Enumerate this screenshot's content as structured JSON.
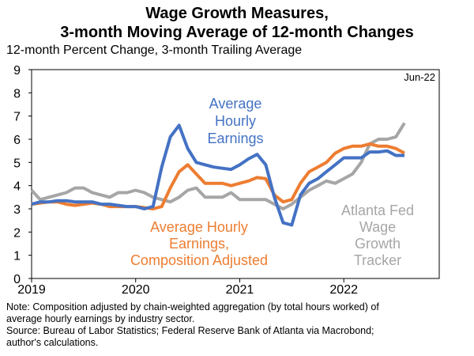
{
  "title_line1": "Wage Growth Measures,",
  "title_line2": "3-month Moving Average of 12-month Changes",
  "notes": [
    "Note: Composition adjusted by chain-weighted aggregation (by total hours worked) of",
    "average hourly earnings by industry sector.",
    "Source: Bureau of Labor Statistics; Federal Reserve Bank of Atlanta via Macrobond;",
    "author's calculations."
  ],
  "chart_data": {
    "type": "line",
    "ylabel": "12-month Percent Change, 3-month Trailing Average",
    "ylim": [
      0,
      9
    ],
    "yticks": [
      0,
      1,
      2,
      3,
      4,
      5,
      6,
      7,
      8,
      9
    ],
    "xlim": [
      2019.0,
      2022.917
    ],
    "xticks": [
      {
        "value": 2019,
        "label": "2019"
      },
      {
        "value": 2020,
        "label": "2020"
      },
      {
        "value": 2021,
        "label": "2021"
      },
      {
        "value": 2022,
        "label": "2022"
      }
    ],
    "corner_label": "Jun-22",
    "series": [
      {
        "name": "Atlanta Fed Wage Growth Tracker",
        "label_lines": [
          "Atlanta Fed",
          "Wage",
          "Growth",
          "Tracker"
        ],
        "color": "#a6a6a6",
        "points": [
          [
            2019.0,
            3.8
          ],
          [
            2019.083,
            3.4
          ],
          [
            2019.167,
            3.5
          ],
          [
            2019.25,
            3.6
          ],
          [
            2019.333,
            3.7
          ],
          [
            2019.417,
            3.9
          ],
          [
            2019.5,
            3.9
          ],
          [
            2019.583,
            3.7
          ],
          [
            2019.667,
            3.6
          ],
          [
            2019.75,
            3.5
          ],
          [
            2019.833,
            3.7
          ],
          [
            2019.917,
            3.7
          ],
          [
            2020.0,
            3.8
          ],
          [
            2020.083,
            3.7
          ],
          [
            2020.167,
            3.5
          ],
          [
            2020.25,
            3.4
          ],
          [
            2020.333,
            3.3
          ],
          [
            2020.417,
            3.5
          ],
          [
            2020.5,
            3.8
          ],
          [
            2020.583,
            3.9
          ],
          [
            2020.667,
            3.5
          ],
          [
            2020.75,
            3.5
          ],
          [
            2020.833,
            3.5
          ],
          [
            2020.917,
            3.7
          ],
          [
            2021.0,
            3.4
          ],
          [
            2021.083,
            3.4
          ],
          [
            2021.167,
            3.4
          ],
          [
            2021.25,
            3.4
          ],
          [
            2021.333,
            3.2
          ],
          [
            2021.417,
            3.0
          ],
          [
            2021.5,
            3.2
          ],
          [
            2021.583,
            3.5
          ],
          [
            2021.667,
            3.8
          ],
          [
            2021.75,
            4.0
          ],
          [
            2021.833,
            4.2
          ],
          [
            2021.917,
            4.1
          ],
          [
            2022.0,
            4.3
          ],
          [
            2022.083,
            4.5
          ],
          [
            2022.167,
            5.0
          ],
          [
            2022.25,
            5.8
          ],
          [
            2022.333,
            6.0
          ],
          [
            2022.417,
            6.0
          ],
          [
            2022.5,
            6.1
          ],
          [
            2022.583,
            6.7
          ]
        ]
      },
      {
        "name": "Average Hourly Earnings, Composition Adjusted",
        "label_lines": [
          "Average Hourly",
          "Earnings,",
          "Composition Adjusted"
        ],
        "color": "#ed7d31",
        "points": [
          [
            2019.0,
            3.2
          ],
          [
            2019.083,
            3.25
          ],
          [
            2019.167,
            3.3
          ],
          [
            2019.25,
            3.3
          ],
          [
            2019.333,
            3.2
          ],
          [
            2019.417,
            3.15
          ],
          [
            2019.5,
            3.2
          ],
          [
            2019.583,
            3.25
          ],
          [
            2019.667,
            3.2
          ],
          [
            2019.75,
            3.1
          ],
          [
            2019.833,
            3.1
          ],
          [
            2019.917,
            3.1
          ],
          [
            2020.0,
            3.1
          ],
          [
            2020.083,
            3.05
          ],
          [
            2020.167,
            3.0
          ],
          [
            2020.25,
            3.1
          ],
          [
            2020.333,
            3.9
          ],
          [
            2020.417,
            4.6
          ],
          [
            2020.5,
            4.9
          ],
          [
            2020.583,
            4.5
          ],
          [
            2020.667,
            4.1
          ],
          [
            2020.75,
            4.1
          ],
          [
            2020.833,
            4.1
          ],
          [
            2020.917,
            4.0
          ],
          [
            2021.0,
            4.1
          ],
          [
            2021.083,
            4.2
          ],
          [
            2021.167,
            4.35
          ],
          [
            2021.25,
            4.3
          ],
          [
            2021.333,
            3.6
          ],
          [
            2021.417,
            3.3
          ],
          [
            2021.5,
            3.4
          ],
          [
            2021.583,
            4.1
          ],
          [
            2021.667,
            4.6
          ],
          [
            2021.75,
            4.8
          ],
          [
            2021.833,
            5.0
          ],
          [
            2021.917,
            5.4
          ],
          [
            2022.0,
            5.6
          ],
          [
            2022.083,
            5.7
          ],
          [
            2022.167,
            5.7
          ],
          [
            2022.25,
            5.8
          ],
          [
            2022.333,
            5.7
          ],
          [
            2022.417,
            5.7
          ],
          [
            2022.5,
            5.6
          ],
          [
            2022.583,
            5.4
          ]
        ]
      },
      {
        "name": "Average Hourly Earnings",
        "label_lines": [
          "Average",
          "Hourly",
          "Earnings"
        ],
        "color": "#4472c4",
        "points": [
          [
            2019.0,
            3.2
          ],
          [
            2019.083,
            3.3
          ],
          [
            2019.167,
            3.3
          ],
          [
            2019.25,
            3.35
          ],
          [
            2019.333,
            3.35
          ],
          [
            2019.417,
            3.3
          ],
          [
            2019.5,
            3.3
          ],
          [
            2019.583,
            3.3
          ],
          [
            2019.667,
            3.2
          ],
          [
            2019.75,
            3.2
          ],
          [
            2019.833,
            3.15
          ],
          [
            2019.917,
            3.1
          ],
          [
            2020.0,
            3.1
          ],
          [
            2020.083,
            3.0
          ],
          [
            2020.167,
            3.1
          ],
          [
            2020.25,
            4.8
          ],
          [
            2020.333,
            6.1
          ],
          [
            2020.417,
            6.6
          ],
          [
            2020.5,
            5.6
          ],
          [
            2020.583,
            5.0
          ],
          [
            2020.667,
            4.9
          ],
          [
            2020.75,
            4.8
          ],
          [
            2020.833,
            4.75
          ],
          [
            2020.917,
            4.7
          ],
          [
            2021.0,
            4.9
          ],
          [
            2021.083,
            5.15
          ],
          [
            2021.167,
            5.35
          ],
          [
            2021.25,
            4.9
          ],
          [
            2021.333,
            3.5
          ],
          [
            2021.417,
            2.4
          ],
          [
            2021.5,
            2.3
          ],
          [
            2021.583,
            3.6
          ],
          [
            2021.667,
            4.1
          ],
          [
            2021.75,
            4.3
          ],
          [
            2021.833,
            4.6
          ],
          [
            2021.917,
            4.9
          ],
          [
            2022.0,
            5.2
          ],
          [
            2022.083,
            5.2
          ],
          [
            2022.167,
            5.2
          ],
          [
            2022.25,
            5.45
          ],
          [
            2022.333,
            5.45
          ],
          [
            2022.417,
            5.5
          ],
          [
            2022.5,
            5.3
          ],
          [
            2022.583,
            5.3
          ]
        ]
      }
    ]
  }
}
